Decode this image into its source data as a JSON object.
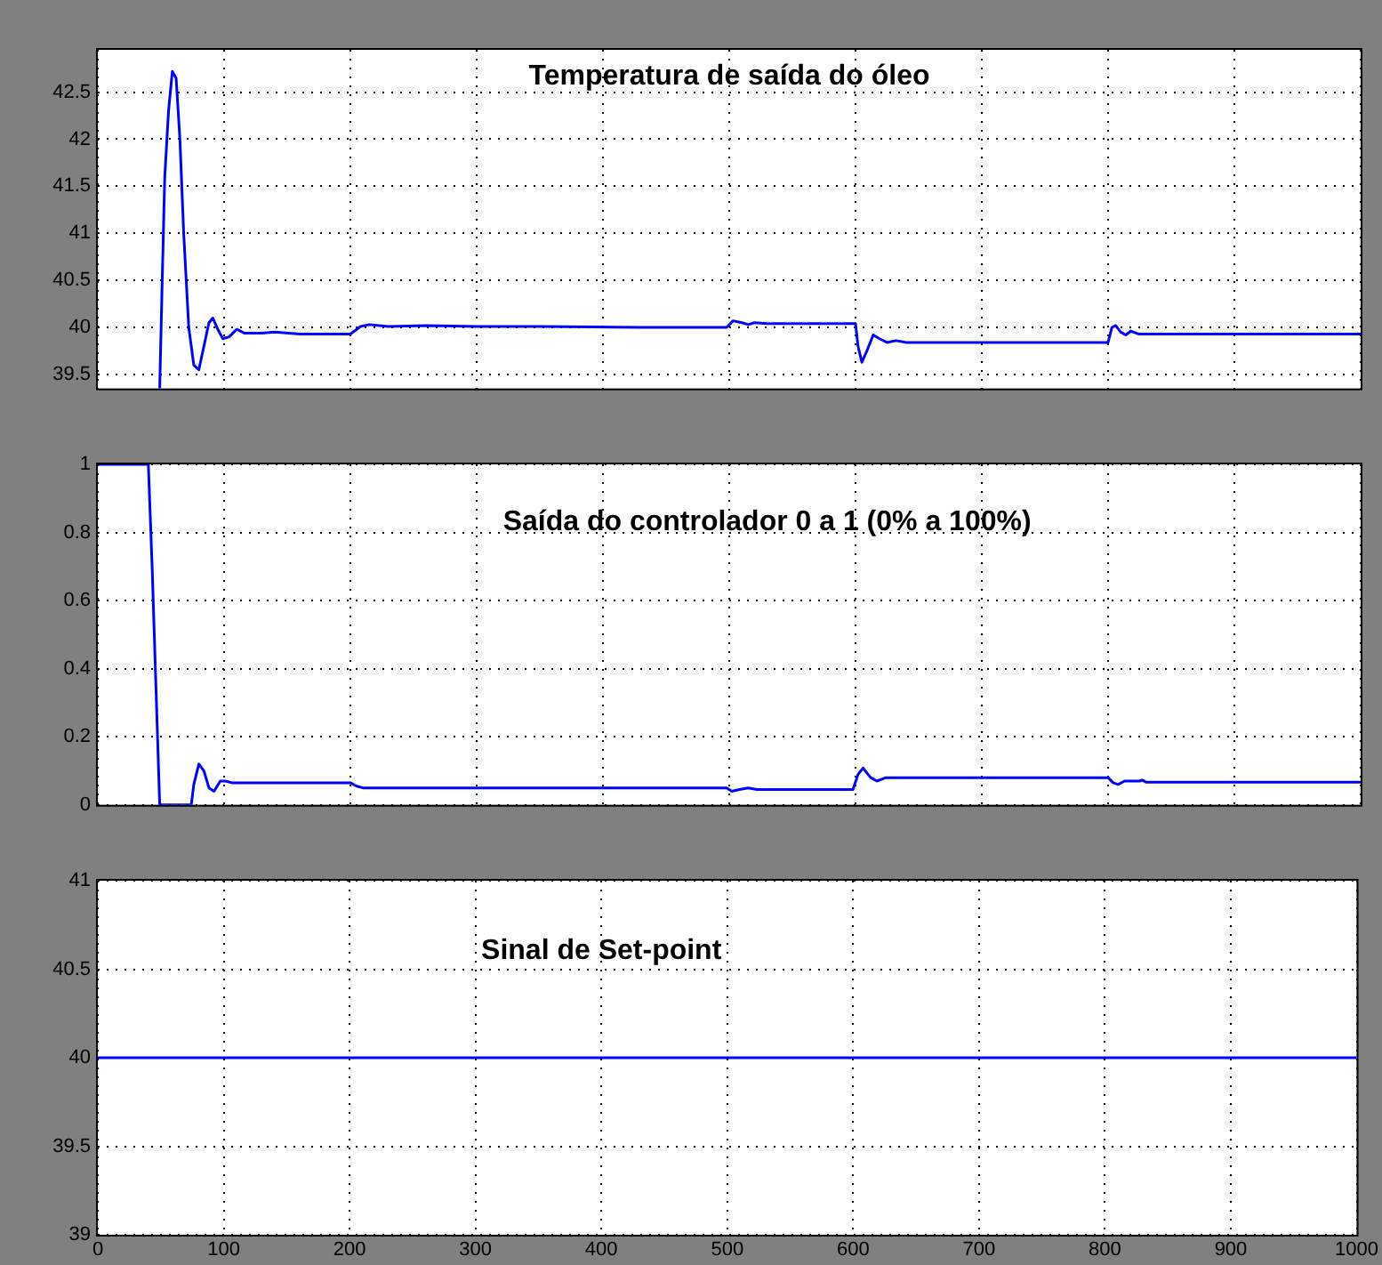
{
  "chart_data": [
    {
      "type": "line",
      "title": "Temperatura de saída do óleo",
      "color": "#0000ff",
      "grid": true,
      "tick_labels": "y",
      "xlim": [
        0,
        1000
      ],
      "xticks": [
        0,
        100,
        200,
        300,
        400,
        500,
        600,
        700,
        800,
        900,
        1000
      ],
      "ylim": [
        39.35,
        42.95
      ],
      "yticks": [
        39.5,
        40,
        40.5,
        41,
        41.5,
        42,
        42.5
      ],
      "x": [
        49,
        51,
        53,
        56,
        59,
        62,
        65,
        68,
        72,
        76,
        80,
        84,
        88,
        91,
        95,
        99,
        104,
        110,
        116,
        130,
        140,
        160,
        200,
        208,
        215,
        230,
        260,
        300,
        350,
        430,
        498,
        503,
        510,
        515,
        520,
        530,
        600,
        602,
        605,
        609,
        614,
        619,
        625,
        632,
        640,
        800,
        803,
        806,
        810,
        814,
        818,
        824,
        1000
      ],
      "values": [
        39.35,
        40.5,
        41.6,
        42.3,
        42.72,
        42.65,
        42.0,
        41.0,
        40.0,
        39.6,
        39.55,
        39.8,
        40.05,
        40.1,
        39.98,
        39.88,
        39.9,
        39.98,
        39.94,
        39.94,
        39.95,
        39.93,
        39.93,
        40.01,
        40.03,
        40.01,
        40.02,
        40.01,
        40.01,
        40.0,
        40.0,
        40.07,
        40.05,
        40.03,
        40.05,
        40.04,
        40.04,
        39.8,
        39.63,
        39.75,
        39.92,
        39.88,
        39.84,
        39.86,
        39.84,
        39.84,
        40.0,
        40.02,
        39.95,
        39.92,
        39.96,
        39.93,
        39.93
      ]
    },
    {
      "type": "line",
      "title": "Saída do controlador 0 a 1 (0% a 100%)",
      "color": "#0000ff",
      "grid": true,
      "tick_labels": "y",
      "xlim": [
        0,
        1000
      ],
      "xticks": [
        0,
        100,
        200,
        300,
        400,
        500,
        600,
        700,
        800,
        900,
        1000
      ],
      "ylim": [
        0,
        1
      ],
      "yticks": [
        0,
        0.2,
        0.4,
        0.6,
        0.8,
        1
      ],
      "x": [
        0,
        40,
        43,
        46,
        49,
        74,
        76,
        80,
        84,
        88,
        92,
        97,
        101,
        106,
        200,
        205,
        210,
        498,
        502,
        508,
        515,
        522,
        598,
        602,
        606,
        612,
        617,
        624,
        800,
        804,
        808,
        813,
        825,
        827,
        830,
        1000
      ],
      "values": [
        1,
        1,
        0.7,
        0.35,
        0,
        0,
        0.06,
        0.12,
        0.1,
        0.05,
        0.04,
        0.07,
        0.07,
        0.065,
        0.065,
        0.055,
        0.05,
        0.05,
        0.04,
        0.045,
        0.05,
        0.045,
        0.045,
        0.09,
        0.108,
        0.08,
        0.07,
        0.08,
        0.08,
        0.065,
        0.06,
        0.07,
        0.07,
        0.073,
        0.067,
        0.067
      ]
    },
    {
      "type": "line",
      "title": "Sinal de Set-point",
      "color": "#0000ff",
      "grid": true,
      "xlim": [
        0,
        1000
      ],
      "xticks": [
        0,
        100,
        200,
        300,
        400,
        500,
        600,
        700,
        800,
        900,
        1000
      ],
      "ylim": [
        39,
        41
      ],
      "yticks": [
        39,
        39.5,
        40,
        40.5,
        41
      ],
      "x": [
        0,
        1000
      ],
      "values": [
        40,
        40
      ]
    }
  ]
}
